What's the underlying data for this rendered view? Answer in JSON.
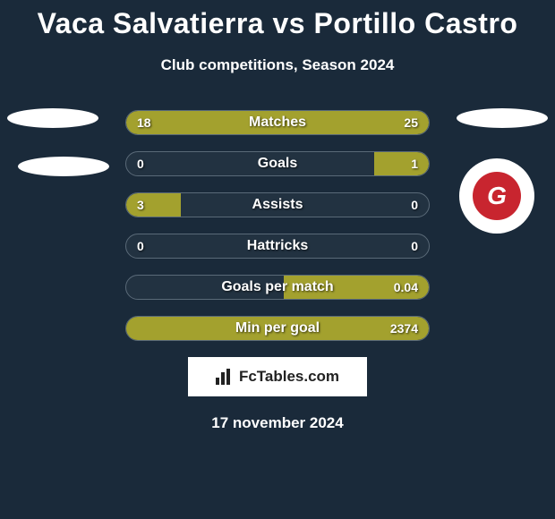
{
  "title": "Vaca Salvatierra vs Portillo Castro",
  "subtitle": "Club competitions, Season 2024",
  "date": "17 november 2024",
  "fctables_label": "FcTables.com",
  "colors": {
    "background": "#1a2a3a",
    "bar_left": "#a3a12e",
    "bar_right": "#a3a12e",
    "bar_border": "#5a6a78"
  },
  "chart": {
    "total_width": 340,
    "rows": [
      {
        "label": "Matches",
        "left_val": "18",
        "right_val": "25",
        "left_pct": 42,
        "right_pct": 58
      },
      {
        "label": "Goals",
        "left_val": "0",
        "right_val": "1",
        "left_pct": 0,
        "right_pct": 18
      },
      {
        "label": "Assists",
        "left_val": "3",
        "right_val": "0",
        "left_pct": 18,
        "right_pct": 0
      },
      {
        "label": "Hattricks",
        "left_val": "0",
        "right_val": "0",
        "left_pct": 0,
        "right_pct": 0
      },
      {
        "label": "Goals per match",
        "left_val": "",
        "right_val": "0.04",
        "left_pct": 0,
        "right_pct": 48
      },
      {
        "label": "Min per goal",
        "left_val": "",
        "right_val": "2374",
        "left_pct": 0,
        "right_pct": 100
      }
    ]
  }
}
